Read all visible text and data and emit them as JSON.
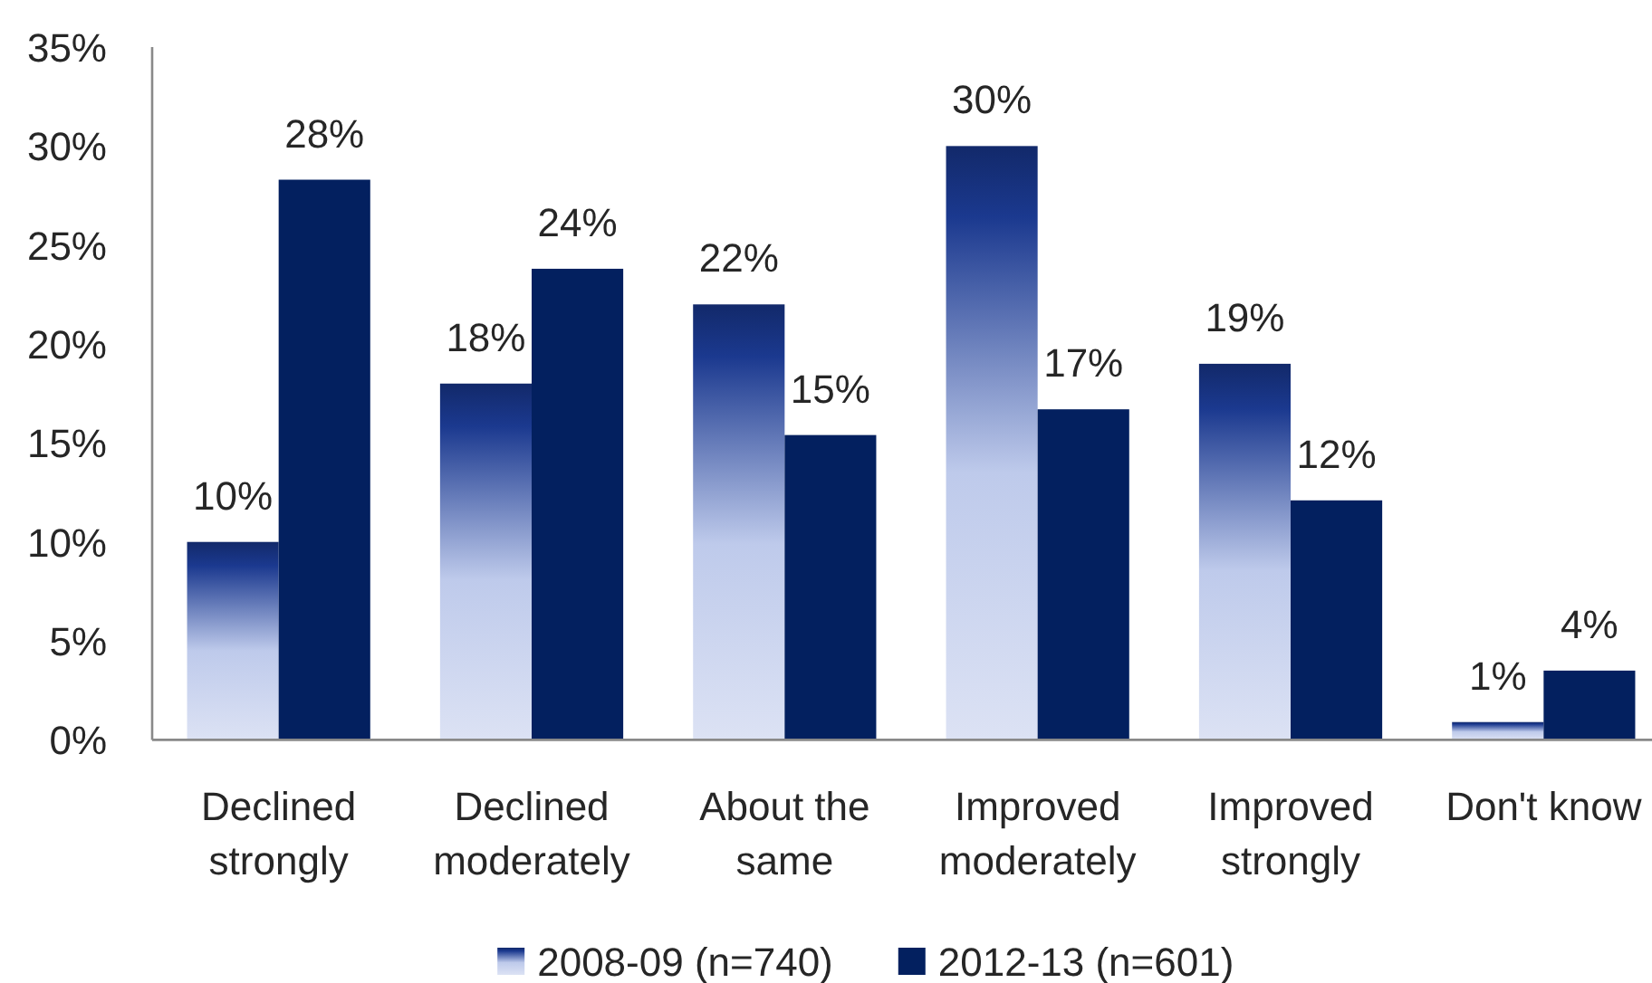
{
  "chart_data": {
    "type": "bar",
    "categories": [
      "Declined strongly",
      "Declined moderately",
      "About the same",
      "Improved moderately",
      "Improved strongly",
      "Don't know"
    ],
    "series": [
      {
        "name": "2008-09 (n=740)",
        "color": "#12296a",
        "values": [
          10,
          18,
          22,
          30,
          19,
          0.9
        ],
        "value_labels": [
          "10%",
          "18%",
          "22%",
          "30%",
          "19%",
          "1%"
        ]
      },
      {
        "name": "2012-13 (n=601)",
        "color": "#03205f",
        "values": [
          28.3,
          23.8,
          15.4,
          16.7,
          12.1,
          3.5
        ],
        "value_labels": [
          "28%",
          "24%",
          "15%",
          "17%",
          "12%",
          "4%"
        ]
      }
    ],
    "ylim": [
      0,
      35
    ],
    "yticks": [
      {
        "value": 0,
        "label": "0%"
      },
      {
        "value": 5,
        "label": "5%"
      },
      {
        "value": 10,
        "label": "10%"
      },
      {
        "value": 15,
        "label": "15%"
      },
      {
        "value": 20,
        "label": "20%"
      },
      {
        "value": 25,
        "label": "25%"
      },
      {
        "value": 30,
        "label": "30%"
      },
      {
        "value": 35,
        "label": "35%"
      }
    ],
    "legend": "bottom"
  }
}
